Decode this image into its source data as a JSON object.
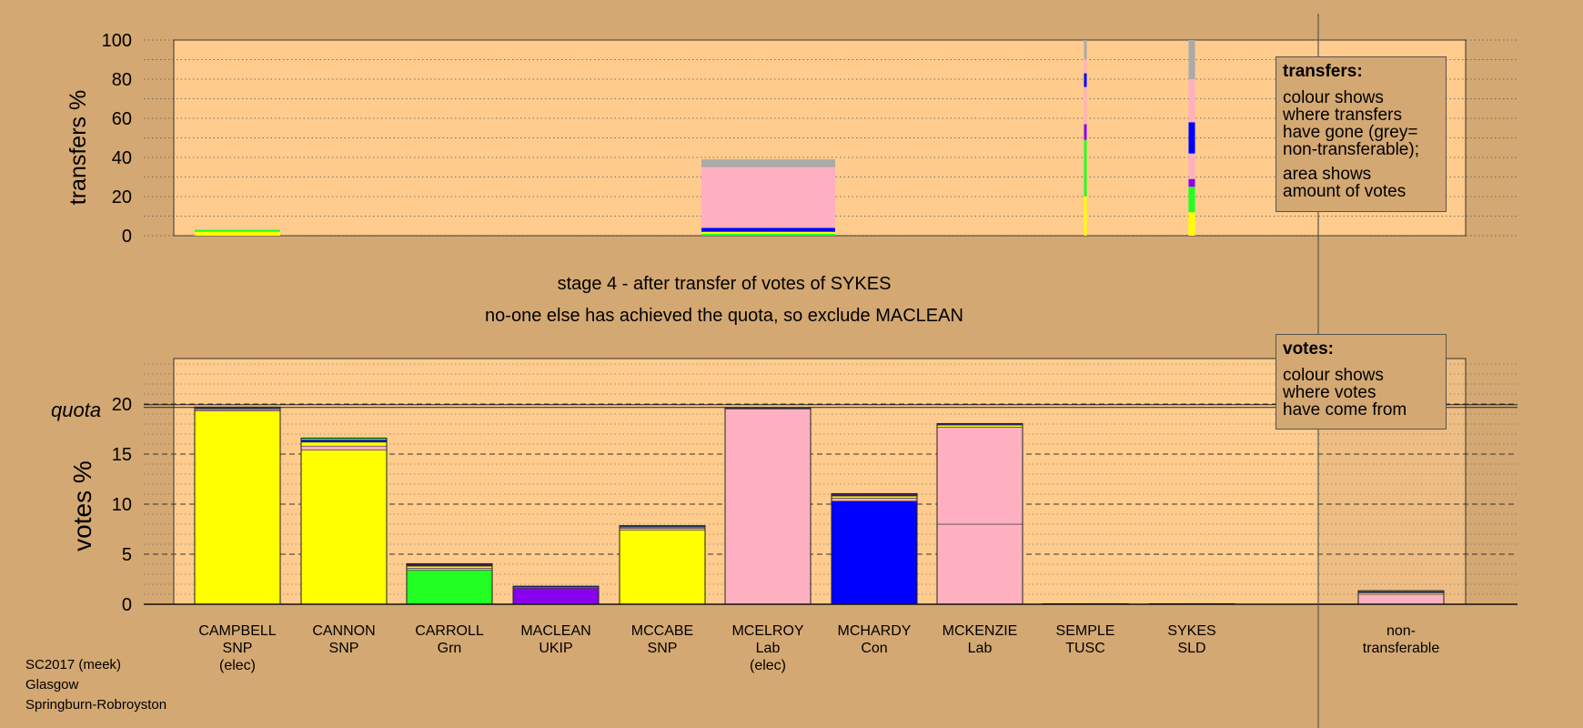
{
  "stage_title": "stage 4 - after transfer of votes of SYKES",
  "stage_subtitle": "no-one else has achieved the quota, so exclude MACLEAN",
  "transfers_legend": {
    "title": "transfers:",
    "lines": [
      "colour shows",
      "where transfers",
      "have gone (grey=",
      "non-transferable);"
    ],
    "lines2": [
      "area shows",
      "amount of votes"
    ]
  },
  "votes_legend": {
    "title": "votes:",
    "lines": [
      "colour shows",
      "where votes",
      "have come from"
    ]
  },
  "footer": [
    "SC2017 (meek)",
    "Glasgow",
    "Springburn-Robroyston"
  ],
  "colors": {
    "background": "#d4a872",
    "plot_background": "#ffcc8e",
    "SNP": "#ffff00",
    "Lab": "#ffb0c0",
    "Con": "#0000ff",
    "Grn": "#22ff22",
    "UKIP": "#8800ee",
    "nontransferable": "#aaaaaa"
  },
  "chart_data": [
    {
      "type": "bar",
      "stacked": true,
      "ylabel": "transfers %",
      "ylim": [
        0,
        100
      ],
      "yticks": [
        0,
        20,
        40,
        60,
        80,
        100
      ],
      "grid": true,
      "categories": [
        "CAMPBELL",
        "CANNON",
        "CARROLL",
        "MACLEAN",
        "MCCABE",
        "MCELROY",
        "MCHARDY",
        "MCKENZIE",
        "SEMPLE",
        "SYKES",
        "non-transferable"
      ],
      "bars": [
        {
          "candidate": "CAMPBELL",
          "width_share": 0.02,
          "segments": [
            {
              "party": "SNP",
              "value": 2
            },
            {
              "party": "Grn",
              "value": 1
            }
          ]
        },
        {
          "candidate": "MCELROY",
          "width_share": 0.12,
          "segments": [
            {
              "party": "Grn",
              "value": 1
            },
            {
              "party": "SNP",
              "value": 1
            },
            {
              "party": "Con",
              "value": 2
            },
            {
              "party": "Lab",
              "value": 31
            },
            {
              "party": "nontransferable",
              "value": 4
            }
          ]
        },
        {
          "candidate": "SEMPLE",
          "width_share": 0.002,
          "segments": [
            {
              "party": "SNP",
              "value": 20
            },
            {
              "party": "Grn",
              "value": 29
            },
            {
              "party": "UKIP",
              "value": 8
            },
            {
              "party": "Lab",
              "value": 19
            },
            {
              "party": "Con",
              "value": 7
            },
            {
              "party": "Lab",
              "value": 7
            },
            {
              "party": "nontransferable",
              "value": 10
            }
          ]
        },
        {
          "candidate": "SYKES",
          "width_share": 0.005,
          "segments": [
            {
              "party": "SNP",
              "value": 12
            },
            {
              "party": "Grn",
              "value": 13
            },
            {
              "party": "UKIP",
              "value": 4
            },
            {
              "party": "Lab",
              "value": 13
            },
            {
              "party": "Con",
              "value": 16
            },
            {
              "party": "Lab",
              "value": 22
            },
            {
              "party": "nontransferable",
              "value": 20
            }
          ]
        }
      ]
    },
    {
      "type": "bar",
      "stacked": true,
      "ylabel": "votes %",
      "ylim": [
        0,
        25
      ],
      "yticks": [
        0,
        5,
        10,
        15,
        20
      ],
      "quota": 19.8,
      "quota_label": "quota",
      "grid": true,
      "categories": [
        "CAMPBELL",
        "CANNON",
        "CARROLL",
        "MACLEAN",
        "MCCABE",
        "MCELROY",
        "MCHARDY",
        "MCKENZIE",
        "SEMPLE",
        "SYKES",
        "non-transferable"
      ],
      "candidates": [
        {
          "name": "CAMPBELL",
          "party": "SNP",
          "status": "(elec)",
          "segments": [
            {
              "party": "SNP",
              "value": 19.3
            },
            {
              "party": "Lab",
              "value": 0.15
            },
            {
              "party": "SNP",
              "value": 0.1
            },
            {
              "party": "Con",
              "value": 0.1
            },
            {
              "party": "Grn",
              "value": 0.05
            }
          ]
        },
        {
          "name": "CANNON",
          "party": "SNP",
          "status": "",
          "segments": [
            {
              "party": "SNP",
              "value": 15.4
            },
            {
              "party": "Lab",
              "value": 0.4
            },
            {
              "party": "SNP",
              "value": 0.4
            },
            {
              "party": "Con",
              "value": 0.2
            },
            {
              "party": "Grn",
              "value": 0.2
            }
          ]
        },
        {
          "name": "CARROLL",
          "party": "Grn",
          "status": "",
          "segments": [
            {
              "party": "Grn",
              "value": 3.4
            },
            {
              "party": "Lab",
              "value": 0.2
            },
            {
              "party": "SNP",
              "value": 0.2
            },
            {
              "party": "Con",
              "value": 0.15
            },
            {
              "party": "UKIP",
              "value": 0.1
            }
          ]
        },
        {
          "name": "MACLEAN",
          "party": "UKIP",
          "status": "",
          "segments": [
            {
              "party": "UKIP",
              "value": 1.6
            },
            {
              "party": "Lab",
              "value": 0.1
            },
            {
              "party": "Con",
              "value": 0.1
            }
          ]
        },
        {
          "name": "MCCABE",
          "party": "SNP",
          "status": "",
          "segments": [
            {
              "party": "SNP",
              "value": 7.4
            },
            {
              "party": "Lab",
              "value": 0.2
            },
            {
              "party": "SNP",
              "value": 0.1
            },
            {
              "party": "Con",
              "value": 0.1
            },
            {
              "party": "Grn",
              "value": 0.05
            }
          ]
        },
        {
          "name": "MCELROY",
          "party": "Lab",
          "status": "(elec)",
          "segments": [
            {
              "party": "Lab",
              "value": 19.5
            },
            {
              "party": "Lab",
              "value": 0.1
            },
            {
              "party": "Con",
              "value": 0.05
            }
          ]
        },
        {
          "name": "MCHARDY",
          "party": "Con",
          "status": "",
          "segments": [
            {
              "party": "Con",
              "value": 10.3
            },
            {
              "party": "Lab",
              "value": 0.3
            },
            {
              "party": "SNP",
              "value": 0.2
            },
            {
              "party": "Con",
              "value": 0.1
            },
            {
              "party": "UKIP",
              "value": 0.1
            },
            {
              "party": "Grn",
              "value": 0.05
            }
          ]
        },
        {
          "name": "MCKENZIE",
          "party": "Lab",
          "status": "",
          "segments": [
            {
              "party": "Lab",
              "value": 8.0
            },
            {
              "party": "Lab",
              "value": 9.7
            },
            {
              "party": "SNP",
              "value": 0.2
            },
            {
              "party": "Con",
              "value": 0.1
            },
            {
              "party": "Grn",
              "value": 0.05
            }
          ]
        },
        {
          "name": "SEMPLE",
          "party": "TUSC",
          "status": "",
          "segments": [
            {
              "party": "nontransferable",
              "value": 0.05
            }
          ]
        },
        {
          "name": "SYKES",
          "party": "SLD",
          "status": "",
          "segments": [
            {
              "party": "nontransferable",
              "value": 0.05
            }
          ]
        },
        {
          "name": "non-",
          "party": "transferable",
          "status": "",
          "segments": [
            {
              "party": "Lab",
              "value": 1.0
            },
            {
              "party": "SNP",
              "value": 0.15
            },
            {
              "party": "Con",
              "value": 0.1
            },
            {
              "party": "nontransferable",
              "value": 0.1
            }
          ]
        }
      ]
    }
  ]
}
